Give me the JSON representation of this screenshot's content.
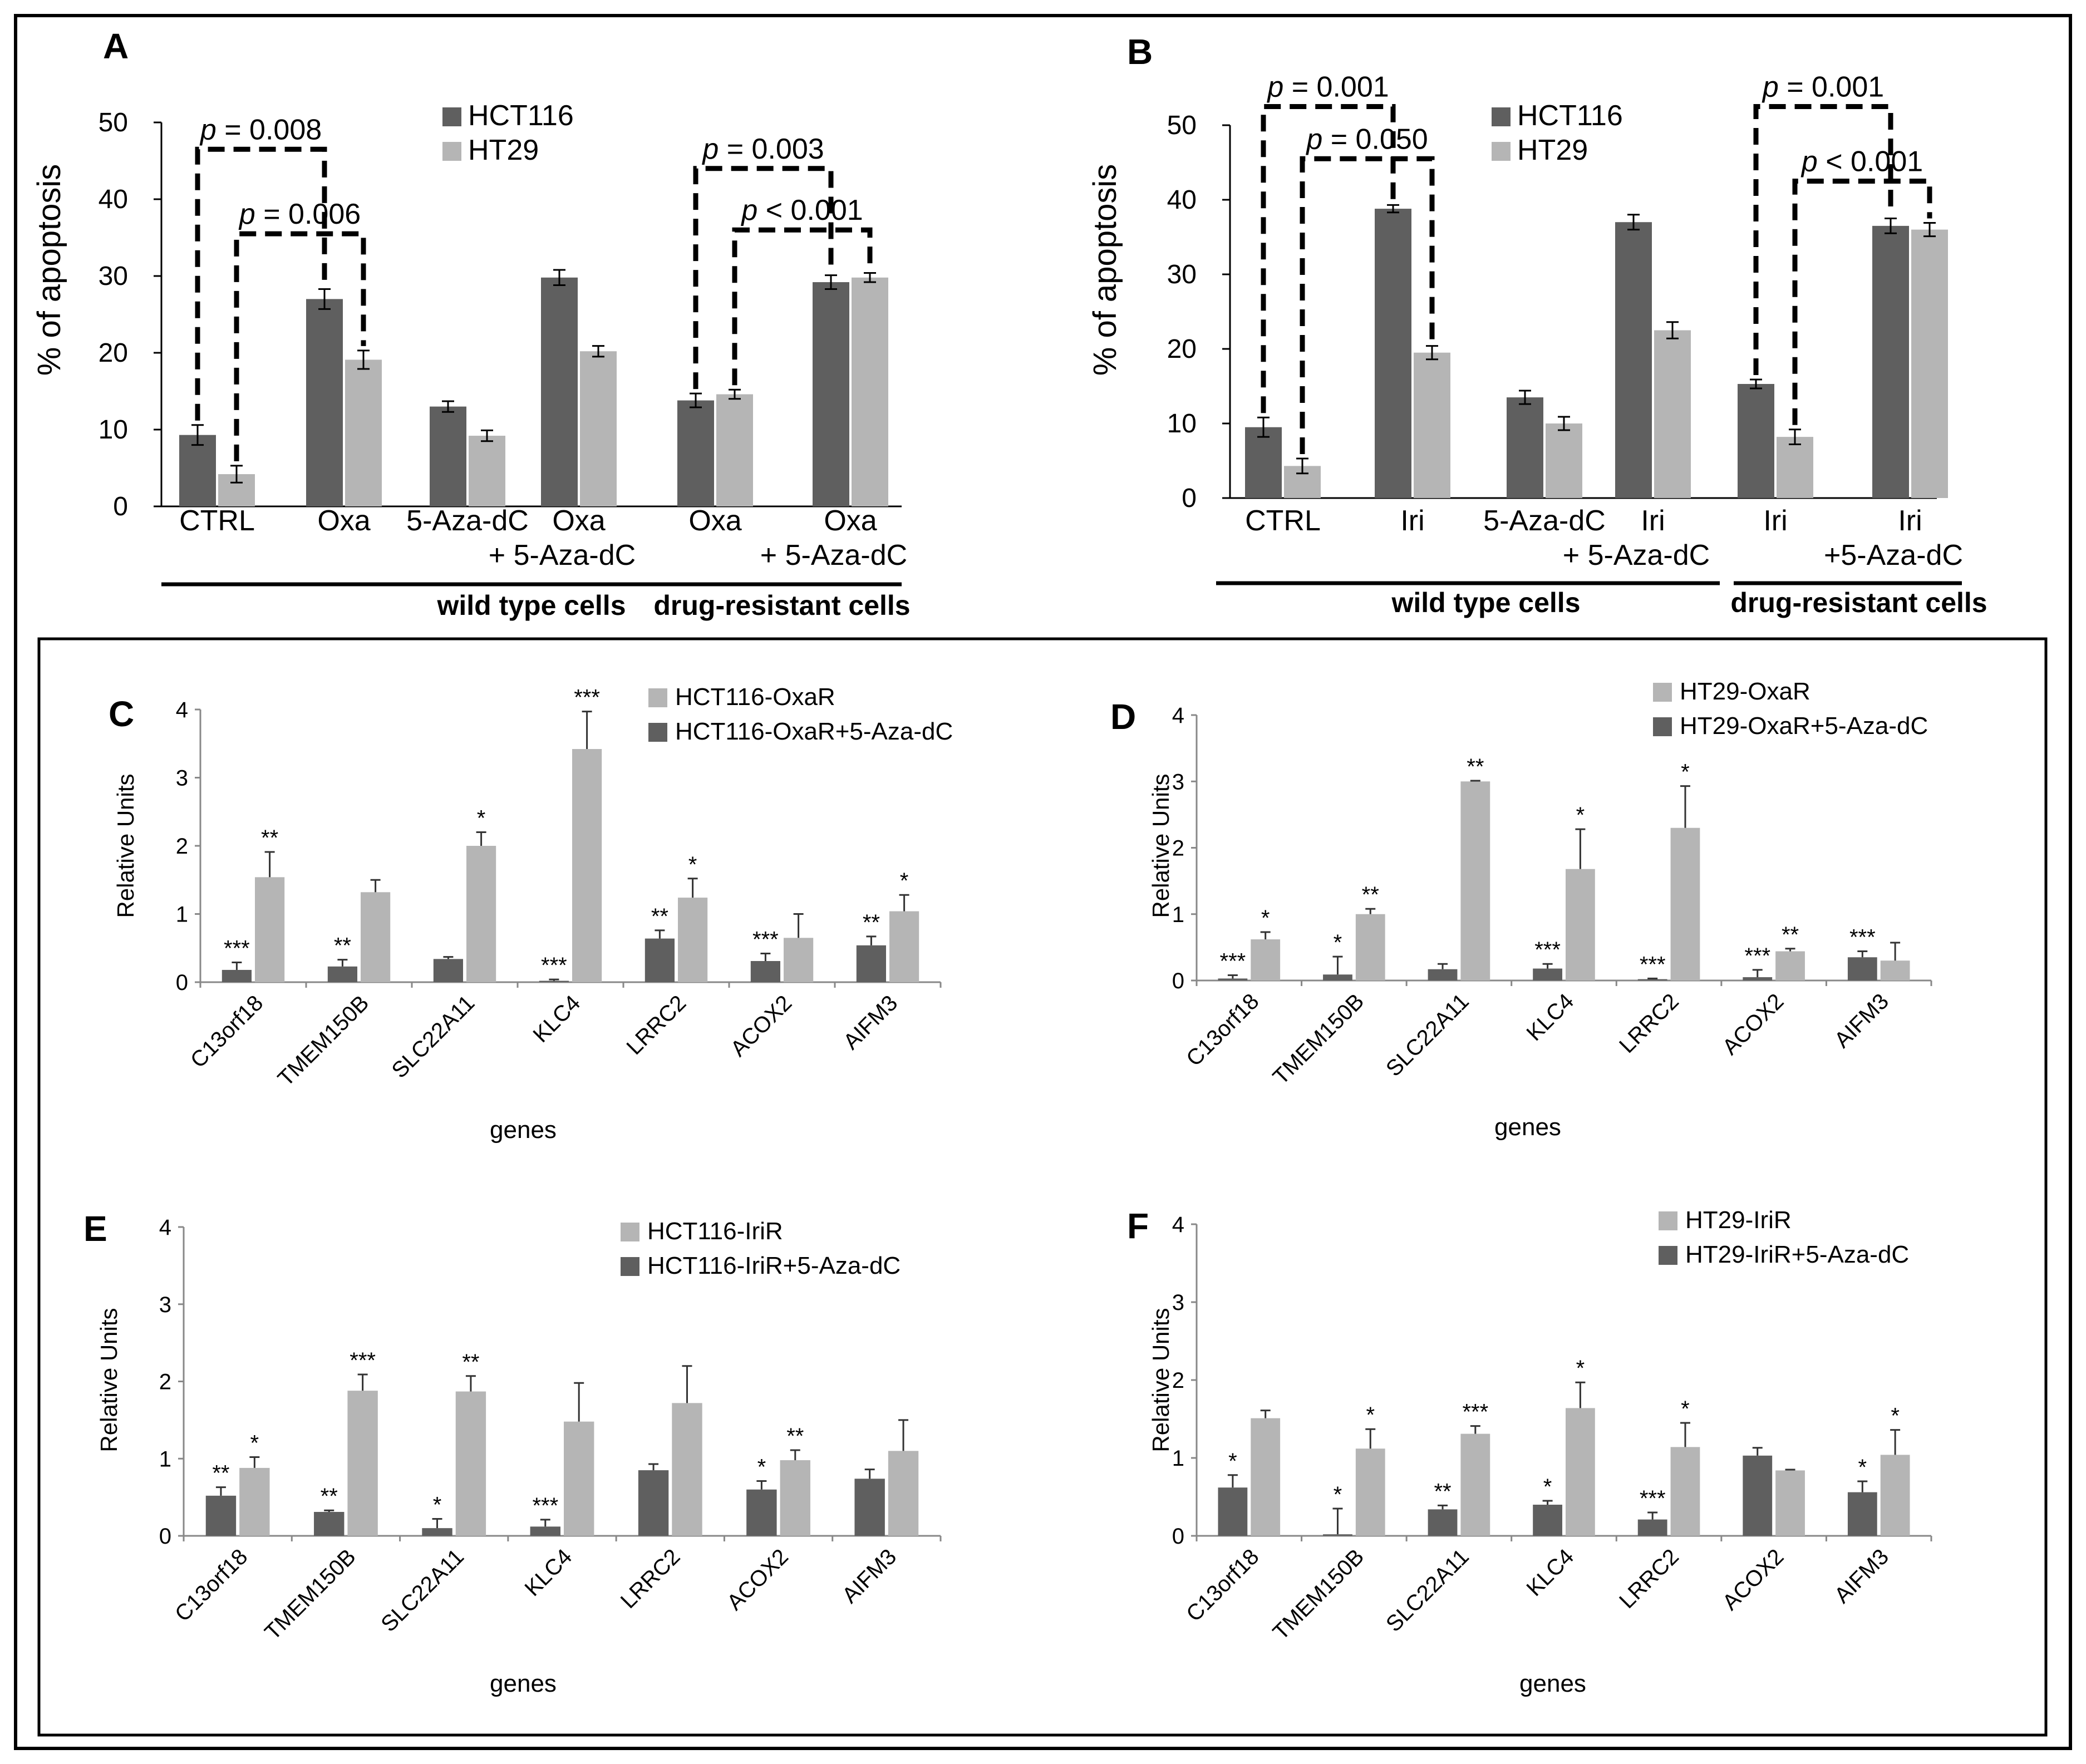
{
  "colors": {
    "dark": "#5f5f5f",
    "light": "#b5b5b5",
    "frame": "#000000"
  },
  "chart_data": [
    {
      "panel": "A",
      "type": "bar",
      "ylabel": "% of apoptosis",
      "ylim": [
        0,
        50
      ],
      "yticks": [
        "0",
        "10",
        "20",
        "30",
        "40",
        "50"
      ],
      "series_names": [
        "HCT116",
        "HT29"
      ],
      "categories": [
        "CTRL",
        "Oxa",
        "5-Aza-dC",
        "Oxa\n+ 5-Aza-dC",
        "Oxa",
        "Oxa\n+ 5-Aza-dC"
      ],
      "series": [
        {
          "name": "HCT116",
          "values": [
            9.3,
            27.0,
            13.0,
            29.8,
            13.8,
            29.2
          ],
          "errors": [
            1.3,
            1.3,
            0.7,
            1.0,
            0.9,
            0.9
          ]
        },
        {
          "name": "HT29",
          "values": [
            4.2,
            19.1,
            9.2,
            20.2,
            14.6,
            29.8
          ],
          "errors": [
            1.1,
            1.2,
            0.7,
            0.7,
            0.6,
            0.6
          ]
        }
      ],
      "groups": [
        {
          "label": "wild type cells",
          "from": 0,
          "to": 3
        },
        {
          "label": "drug-resistant cells",
          "from": 4,
          "to": 5
        }
      ],
      "pvalues": [
        {
          "label": "p = 0.008",
          "from": [
            0,
            0
          ],
          "to": [
            1,
            0
          ],
          "level": 46.5
        },
        {
          "label": "p = 0.006",
          "from": [
            0,
            1
          ],
          "to": [
            1,
            1
          ],
          "level": 35.5
        },
        {
          "label": "p = 0.003",
          "from": [
            4,
            0
          ],
          "to": [
            5,
            0
          ],
          "level": 44.0
        },
        {
          "label": "p < 0.001",
          "from": [
            4,
            1
          ],
          "to": [
            5,
            1
          ],
          "level": 36.0
        }
      ],
      "legend_position": "top-center"
    },
    {
      "panel": "B",
      "type": "bar",
      "ylabel": "% of apoptosis",
      "ylim": [
        0,
        50
      ],
      "yticks": [
        "0",
        "10",
        "20",
        "30",
        "40",
        "50"
      ],
      "series_names": [
        "HCT116",
        "HT29"
      ],
      "categories": [
        "CTRL",
        "Iri",
        "5-Aza-dC",
        "Iri\n+ 5-Aza-dC",
        "Iri",
        "Iri\n+5-Aza-dC"
      ],
      "series": [
        {
          "name": "HCT116",
          "values": [
            9.5,
            38.8,
            13.5,
            37.0,
            15.3,
            36.5
          ],
          "errors": [
            1.3,
            0.5,
            0.9,
            1.0,
            0.6,
            1.0
          ]
        },
        {
          "name": "HT29",
          "values": [
            4.3,
            19.5,
            10.0,
            22.5,
            8.2,
            36.0
          ],
          "errors": [
            1.0,
            0.9,
            0.9,
            1.1,
            1.0,
            0.9
          ]
        }
      ],
      "groups": [
        {
          "label": "wild type cells",
          "from": 0,
          "to": 3
        },
        {
          "label": "drug-resistant cells",
          "from": 4,
          "to": 5
        }
      ],
      "pvalues": [
        {
          "label": "p = 0.001",
          "from": [
            0,
            0
          ],
          "to": [
            1,
            0
          ],
          "level": 52.5
        },
        {
          "label": "p = 0.050",
          "from": [
            0,
            1
          ],
          "to": [
            1,
            1
          ],
          "level": 45.5
        },
        {
          "label": "p = 0.001",
          "from": [
            4,
            0
          ],
          "to": [
            5,
            0
          ],
          "level": 52.5
        },
        {
          "label": "p < 0.001",
          "from": [
            4,
            1
          ],
          "to": [
            5,
            1
          ],
          "level": 42.5
        }
      ],
      "legend_position": "top-center"
    },
    {
      "panel": "C",
      "type": "bar",
      "ylabel": "Relative Units",
      "xlabel": "genes",
      "ylim": [
        0,
        4
      ],
      "yticks": [
        "0",
        "1",
        "2",
        "3",
        "4"
      ],
      "categories": [
        "C13orf18",
        "TMEM150B",
        "SLC22A11",
        "KLC4",
        "LRRC2",
        "ACOX2",
        "AIFM3"
      ],
      "series": [
        {
          "name": "HCT116-OxaR+5-Aza-dC",
          "values": [
            0.18,
            0.23,
            0.34,
            0.02,
            0.64,
            0.31,
            0.54
          ],
          "errors": [
            0.11,
            0.1,
            0.03,
            0.02,
            0.12,
            0.11,
            0.13
          ],
          "stars": [
            "***",
            "**",
            "",
            "***",
            "**",
            "***",
            "**"
          ]
        },
        {
          "name": "HCT116-OxaR",
          "values": [
            1.54,
            1.32,
            2.0,
            3.42,
            1.24,
            0.65,
            1.04
          ],
          "errors": [
            0.37,
            0.18,
            0.2,
            0.55,
            0.28,
            0.35,
            0.24
          ],
          "stars": [
            "**",
            "",
            "*",
            "***",
            "*",
            "",
            "*"
          ]
        }
      ],
      "legend": [
        "HCT116-OxaR",
        "HCT116-OxaR+5-Aza-dC"
      ],
      "legend_position": "top-right"
    },
    {
      "panel": "D",
      "type": "bar",
      "ylabel": "Relative Units",
      "xlabel": "genes",
      "ylim": [
        0,
        4
      ],
      "yticks": [
        "0",
        "1",
        "2",
        "3",
        "4"
      ],
      "categories": [
        "C13orf18",
        "TMEM150B",
        "SLC22A11",
        "KLC4",
        "LRRC2",
        "ACOX2",
        "AIFM3"
      ],
      "series": [
        {
          "name": "HT29-OxaR+5-Aza-dC",
          "values": [
            0.03,
            0.09,
            0.17,
            0.18,
            0.02,
            0.05,
            0.35
          ],
          "errors": [
            0.05,
            0.27,
            0.08,
            0.07,
            0.01,
            0.11,
            0.09
          ],
          "stars": [
            "***",
            "*",
            "",
            "***",
            "***",
            "***",
            "***"
          ]
        },
        {
          "name": "HT29-OxaR",
          "values": [
            0.62,
            1.0,
            3.0,
            1.68,
            2.3,
            0.44,
            0.3
          ],
          "errors": [
            0.11,
            0.08,
            0.01,
            0.6,
            0.63,
            0.04,
            0.27
          ],
          "stars": [
            "*",
            "**",
            "**",
            "*",
            "*",
            "**",
            ""
          ]
        }
      ],
      "legend": [
        "HT29-OxaR",
        "HT29-OxaR+5-Aza-dC"
      ],
      "legend_position": "top-right"
    },
    {
      "panel": "E",
      "type": "bar",
      "ylabel": "Relative Units",
      "xlabel": "genes",
      "ylim": [
        0,
        4
      ],
      "yticks": [
        "0",
        "1",
        "2",
        "3",
        "4"
      ],
      "categories": [
        "C13orf18",
        "TMEM150B",
        "SLC22A11",
        "KLC4",
        "LRRC2",
        "ACOX2",
        "AIFM3"
      ],
      "series": [
        {
          "name": "HCT116-IriR+5-Aza-dC",
          "values": [
            0.52,
            0.31,
            0.1,
            0.12,
            0.85,
            0.6,
            0.74
          ],
          "errors": [
            0.11,
            0.02,
            0.12,
            0.09,
            0.08,
            0.11,
            0.12
          ],
          "stars": [
            "**",
            "**",
            "*",
            "***",
            "",
            "*",
            ""
          ]
        },
        {
          "name": "HCT116-IriR",
          "values": [
            0.88,
            1.88,
            1.87,
            1.48,
            1.72,
            0.98,
            1.1
          ],
          "errors": [
            0.14,
            0.21,
            0.2,
            0.5,
            0.48,
            0.13,
            0.4
          ],
          "stars": [
            "*",
            "***",
            "**",
            "",
            "",
            "**",
            ""
          ]
        }
      ],
      "legend": [
        "HCT116-IriR",
        "HCT116-IriR+5-Aza-dC"
      ],
      "legend_position": "top-right"
    },
    {
      "panel": "F",
      "type": "bar",
      "ylabel": "Relative Units",
      "xlabel": "genes",
      "ylim": [
        0,
        4
      ],
      "yticks": [
        "0",
        "1",
        "2",
        "3",
        "4"
      ],
      "categories": [
        "C13orf18",
        "TMEM150B",
        "SLC22A11",
        "KLC4",
        "LRRC2",
        "ACOX2",
        "AIFM3"
      ],
      "series": [
        {
          "name": "HT29-IriR+5-Aza-dC",
          "values": [
            0.62,
            0.02,
            0.34,
            0.4,
            0.21,
            1.03,
            0.56
          ],
          "errors": [
            0.16,
            0.33,
            0.05,
            0.05,
            0.09,
            0.1,
            0.14
          ],
          "stars": [
            "*",
            "*",
            "**",
            "*",
            "***",
            "",
            "*"
          ]
        },
        {
          "name": "HT29-IriR",
          "values": [
            1.51,
            1.12,
            1.31,
            1.64,
            1.14,
            0.84,
            1.04
          ],
          "errors": [
            0.1,
            0.25,
            0.1,
            0.33,
            0.31,
            0.01,
            0.32
          ],
          "stars": [
            "",
            "*",
            "***",
            "*",
            "*",
            "",
            "*"
          ]
        }
      ],
      "legend": [
        "HT29-IriR",
        "HT29-IriR+5-Aza-dC"
      ],
      "legend_position": "top-right"
    }
  ]
}
